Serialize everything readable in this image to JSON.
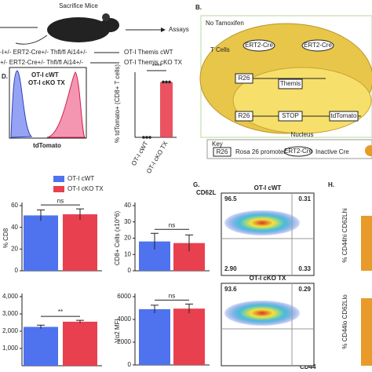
{
  "panel_a": {
    "step_label": "Sacrifice Mice",
    "assay_label": "Assays",
    "genotypes": [
      {
        "genotype": "-I+/- ERT2-Cre+/- Thfl/fl Ai14+/-",
        "group": "OT-I Themis cWT"
      },
      {
        "genotype": "+/- ERT2-Cre+/- Thfl/fl Ai14+/-",
        "group": "OT-I Themis cKO TX"
      }
    ]
  },
  "panel_b": {
    "label": "B.",
    "condition": "No Tamoxifen",
    "cell_label": "T Cells",
    "cre": [
      "ERT2-Cre",
      "ERT2-Cre"
    ],
    "construct_1": [
      "R26",
      "Themis"
    ],
    "construct_2": [
      "R26",
      "STOP",
      "tdTomato"
    ],
    "nucleus_label": "Nucleus",
    "key": {
      "title": "Key",
      "items": [
        {
          "symbol": "R26",
          "meaning": "Rosa 26 promoter"
        },
        {
          "symbol": "ERT2-Cre",
          "meaning": "Inactive Cre"
        }
      ]
    }
  },
  "panel_d": {
    "label": "D.",
    "histogram": {
      "legend": [
        "OT-I cWT",
        "OT-I cKO TX"
      ],
      "x_label": "tdTomato"
    },
    "bar": {
      "y_label": "% tdTomato+ (CD8+ T cells)",
      "significance": "****",
      "categories": [
        "OT-I cWT",
        "OT-I cKO TX"
      ],
      "values": [
        0,
        85
      ],
      "ylim": [
        0,
        100
      ]
    }
  },
  "panel_e": {
    "legend": [
      {
        "name": "OT-I cWT",
        "color": "#4f73ee"
      },
      {
        "name": "OT-I cKO TX",
        "color": "#e8404e"
      }
    ],
    "charts": [
      {
        "y_label": "% CD8",
        "significance": "ns",
        "values": [
          51,
          52
        ],
        "errors": [
          5,
          5
        ],
        "ylim": [
          0,
          60
        ],
        "yticks": [
          0,
          20,
          40,
          60
        ]
      },
      {
        "y_label": "CD8+ Cells (x10^6)",
        "significance": "ns",
        "values": [
          18,
          17
        ],
        "errors": [
          5,
          5
        ],
        "ylim": [
          0,
          40
        ],
        "yticks": [
          0,
          10,
          20,
          30,
          40
        ]
      },
      {
        "y_label": "",
        "significance": "**",
        "values": [
          2250,
          2550
        ],
        "errors": [
          100,
          80
        ],
        "ylim": [
          0,
          4000
        ],
        "yticks": [
          {
            "value": 1000,
            "label": "1,000"
          },
          {
            "value": 2000,
            "label": "2,000"
          },
          {
            "value": 3000,
            "label": "3,000"
          },
          {
            "value": 4000,
            "label": "4,000"
          }
        ]
      },
      {
        "y_label": "Vα2 MFI",
        "significance": "ns",
        "values": [
          4900,
          4950
        ],
        "errors": [
          350,
          400
        ],
        "ylim": [
          0,
          6000
        ],
        "yticks": [
          0,
          2000,
          4000,
          6000
        ]
      }
    ]
  },
  "panel_g": {
    "label": "G.",
    "y_axis": "CD62L",
    "x_axis": "CD44",
    "plots": [
      {
        "title": "OT-I cWT",
        "quadrants": [
          "96.5",
          "0.31",
          "2.90",
          "0.33"
        ]
      },
      {
        "title": "OT-I cKO TX",
        "quadrants": [
          "93.6",
          "0.29"
        ]
      }
    ]
  },
  "panel_h": {
    "label": "H.",
    "y_labels": [
      "% CD44hi CD62Lhi",
      "% CD44lo CD62Llo"
    ]
  }
}
